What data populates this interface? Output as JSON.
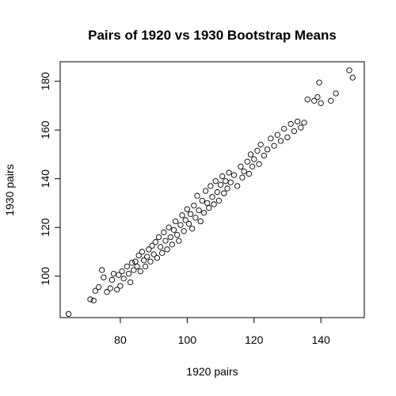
{
  "chart_data": {
    "type": "scatter",
    "title": "Pairs of 1920 vs 1930 Bootstrap Means",
    "xlabel": "1920 pairs",
    "ylabel": "1930 pairs",
    "xlim": [
      62,
      153
    ],
    "ylim": [
      83,
      188
    ],
    "xticks": [
      80,
      100,
      120,
      140
    ],
    "yticks": [
      100,
      120,
      140,
      160,
      180
    ],
    "grid": false,
    "point_color": "#000000",
    "series": [
      {
        "points": [
          [
            64.5,
            84.5
          ],
          [
            71,
            90.5
          ],
          [
            72,
            90
          ],
          [
            72.5,
            94
          ],
          [
            73.5,
            95.5
          ],
          [
            74.5,
            102.5
          ],
          [
            75,
            99.5
          ],
          [
            76,
            93.5
          ],
          [
            77,
            95
          ],
          [
            77.5,
            98.5
          ],
          [
            78,
            101
          ],
          [
            79,
            94.5
          ],
          [
            79.5,
            100.5
          ],
          [
            80,
            96
          ],
          [
            80.5,
            102
          ],
          [
            81,
            99
          ],
          [
            82,
            104
          ],
          [
            82.5,
            101
          ],
          [
            83,
            97.5
          ],
          [
            83.5,
            105.5
          ],
          [
            84,
            102.5
          ],
          [
            84.5,
            106
          ],
          [
            85,
            104
          ],
          [
            85.5,
            108.5
          ],
          [
            86,
            102
          ],
          [
            86.5,
            110
          ],
          [
            87,
            106.5
          ],
          [
            87.5,
            104
          ],
          [
            88,
            108
          ],
          [
            88.5,
            111
          ],
          [
            89,
            106
          ],
          [
            89.5,
            112.5
          ],
          [
            90,
            109
          ],
          [
            90.5,
            114
          ],
          [
            91,
            107.5
          ],
          [
            91.5,
            116
          ],
          [
            92,
            112
          ],
          [
            92.5,
            109.5
          ],
          [
            93,
            118
          ],
          [
            93.5,
            114.5
          ],
          [
            94,
            111
          ],
          [
            94.5,
            120
          ],
          [
            95,
            116
          ],
          [
            95.5,
            113
          ],
          [
            96,
            119
          ],
          [
            96.5,
            122.5
          ],
          [
            97,
            117
          ],
          [
            97.5,
            114.5
          ],
          [
            98,
            121
          ],
          [
            98.5,
            125
          ],
          [
            99,
            118.5
          ],
          [
            99.5,
            123
          ],
          [
            100,
            127.5
          ],
          [
            100.5,
            121.5
          ],
          [
            101,
            125.5
          ],
          [
            101.5,
            119.5
          ],
          [
            102,
            129
          ],
          [
            102.5,
            124
          ],
          [
            103,
            133
          ],
          [
            103.5,
            127
          ],
          [
            104,
            122.5
          ],
          [
            104.5,
            131
          ],
          [
            105,
            126
          ],
          [
            105.5,
            135
          ],
          [
            106,
            130
          ],
          [
            106.5,
            128
          ],
          [
            107,
            137
          ],
          [
            107.5,
            132.5
          ],
          [
            108,
            129.5
          ],
          [
            108.5,
            139
          ],
          [
            109,
            134.5
          ],
          [
            109.5,
            131
          ],
          [
            110,
            137.5
          ],
          [
            110.5,
            141
          ],
          [
            111,
            134
          ],
          [
            111.5,
            139
          ],
          [
            112,
            136
          ],
          [
            112.5,
            142.5
          ],
          [
            113,
            138.5
          ],
          [
            114,
            141.5
          ],
          [
            115,
            137
          ],
          [
            116,
            145
          ],
          [
            116.5,
            140.5
          ],
          [
            117,
            143
          ],
          [
            118,
            147
          ],
          [
            118.5,
            142
          ],
          [
            119,
            150
          ],
          [
            119.5,
            145
          ],
          [
            120,
            148
          ],
          [
            121,
            151.5
          ],
          [
            121.5,
            146
          ],
          [
            122,
            154
          ],
          [
            123,
            149.5
          ],
          [
            124,
            152
          ],
          [
            125,
            156.5
          ],
          [
            126,
            153.5
          ],
          [
            127,
            158
          ],
          [
            128,
            155.5
          ],
          [
            129,
            160.5
          ],
          [
            130,
            157
          ],
          [
            131,
            162.5
          ],
          [
            132,
            159.5
          ],
          [
            133,
            163.5
          ],
          [
            134,
            161
          ],
          [
            135,
            163
          ],
          [
            136,
            172.5
          ],
          [
            138,
            172
          ],
          [
            139,
            173.5
          ],
          [
            139.5,
            179.5
          ],
          [
            140,
            171
          ],
          [
            143,
            172
          ],
          [
            144.5,
            175
          ],
          [
            148.5,
            184.5
          ],
          [
            149.5,
            181.5
          ]
        ]
      }
    ]
  }
}
